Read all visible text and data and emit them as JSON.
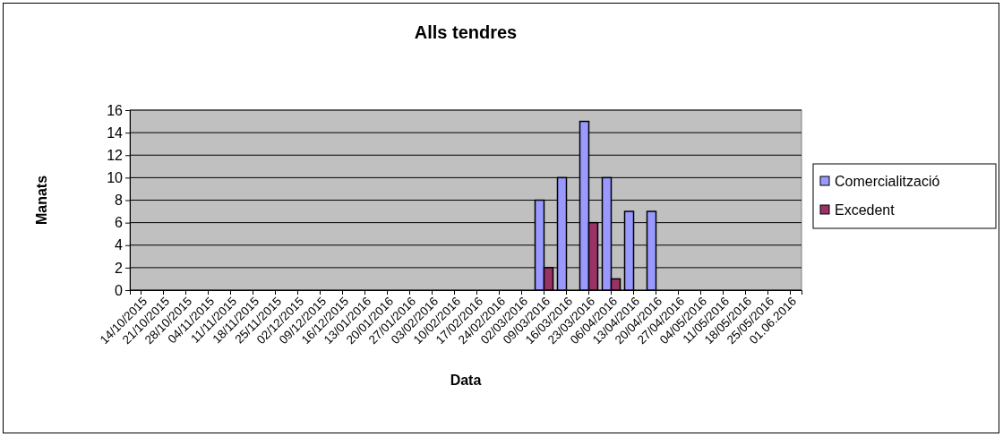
{
  "chart_data": {
    "type": "bar",
    "title": "Alls tendres",
    "xlabel": "Data",
    "ylabel": "Manats",
    "categories": [
      "14/10/2015",
      "21/10/2015",
      "28/10/2015",
      "04/11/2015",
      "11/11/2015",
      "18/11/2015",
      "25/11/2015",
      "02/12/2015",
      "09/12/2015",
      "16/12/2015",
      "13/01/2016",
      "20/01/2016",
      "27/01/2016",
      "03/02/2016",
      "10/02/2016",
      "17/02/2016",
      "24/02/2016",
      "02/03/2016",
      "09/03/2016",
      "16/03/2016",
      "23/03/2016",
      "06/04/2016",
      "13/04/2016",
      "20/04/2016",
      "27/04/2016",
      "04/05/2016",
      "11/05/2016",
      "18/05/2016",
      "25/05/2016",
      "01.06.2016"
    ],
    "series": [
      {
        "name": "Comercialització",
        "color": "#9999ff",
        "values": [
          null,
          null,
          null,
          null,
          null,
          null,
          null,
          null,
          null,
          null,
          null,
          null,
          null,
          null,
          null,
          null,
          null,
          null,
          8,
          10,
          15,
          10,
          7,
          7,
          null,
          null,
          null,
          null,
          null,
          null
        ]
      },
      {
        "name": "Excedent",
        "color": "#993366",
        "values": [
          null,
          null,
          null,
          null,
          null,
          null,
          null,
          null,
          null,
          null,
          null,
          null,
          null,
          null,
          null,
          null,
          null,
          null,
          2,
          0,
          6,
          1,
          0,
          0,
          null,
          null,
          null,
          null,
          null,
          null
        ]
      }
    ],
    "ylim": [
      0,
      16
    ],
    "yticks": [
      0,
      2,
      4,
      6,
      8,
      10,
      12,
      14,
      16
    ],
    "grid": "y",
    "legend": "right"
  }
}
